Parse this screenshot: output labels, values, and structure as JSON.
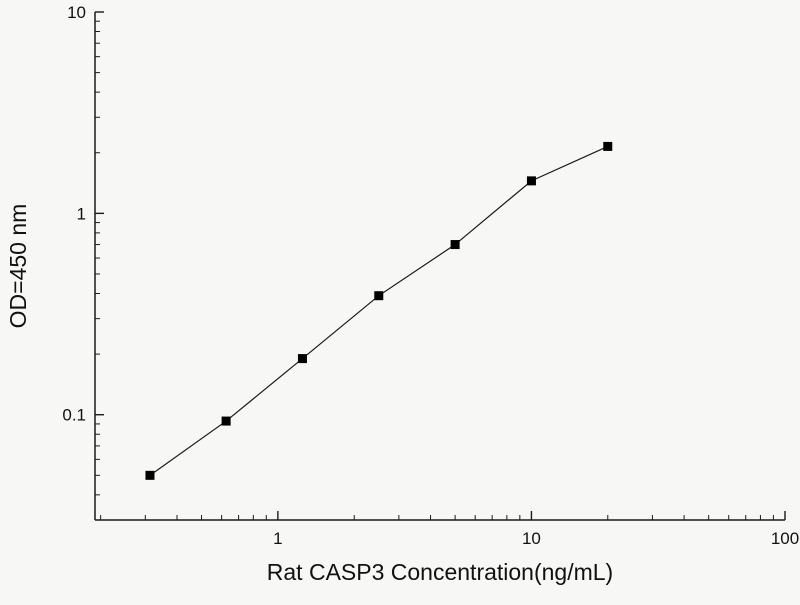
{
  "chart_data": {
    "type": "line",
    "title": "",
    "xlabel": "Rat CASP3 Concentration(ng/mL)",
    "ylabel": "OD=450 nm",
    "xscale": "log",
    "yscale": "log",
    "xlim": [
      0.19,
      100
    ],
    "ylim": [
      0.03,
      10
    ],
    "x_ticks": [
      1,
      10,
      100
    ],
    "x_tick_labels": [
      "1",
      "10",
      "100"
    ],
    "y_ticks": [
      0.1,
      1,
      10
    ],
    "y_tick_labels": [
      "0.1",
      "1",
      "10"
    ],
    "x": [
      0.313,
      0.625,
      1.25,
      2.5,
      5,
      10,
      20
    ],
    "y": [
      0.05,
      0.093,
      0.19,
      0.39,
      0.7,
      1.45,
      2.15
    ],
    "marker": "square",
    "line_color": "#1a1a1a",
    "marker_color": "#000000",
    "axis_color": "#1a1a1a",
    "grid": "off",
    "legend": "none"
  }
}
